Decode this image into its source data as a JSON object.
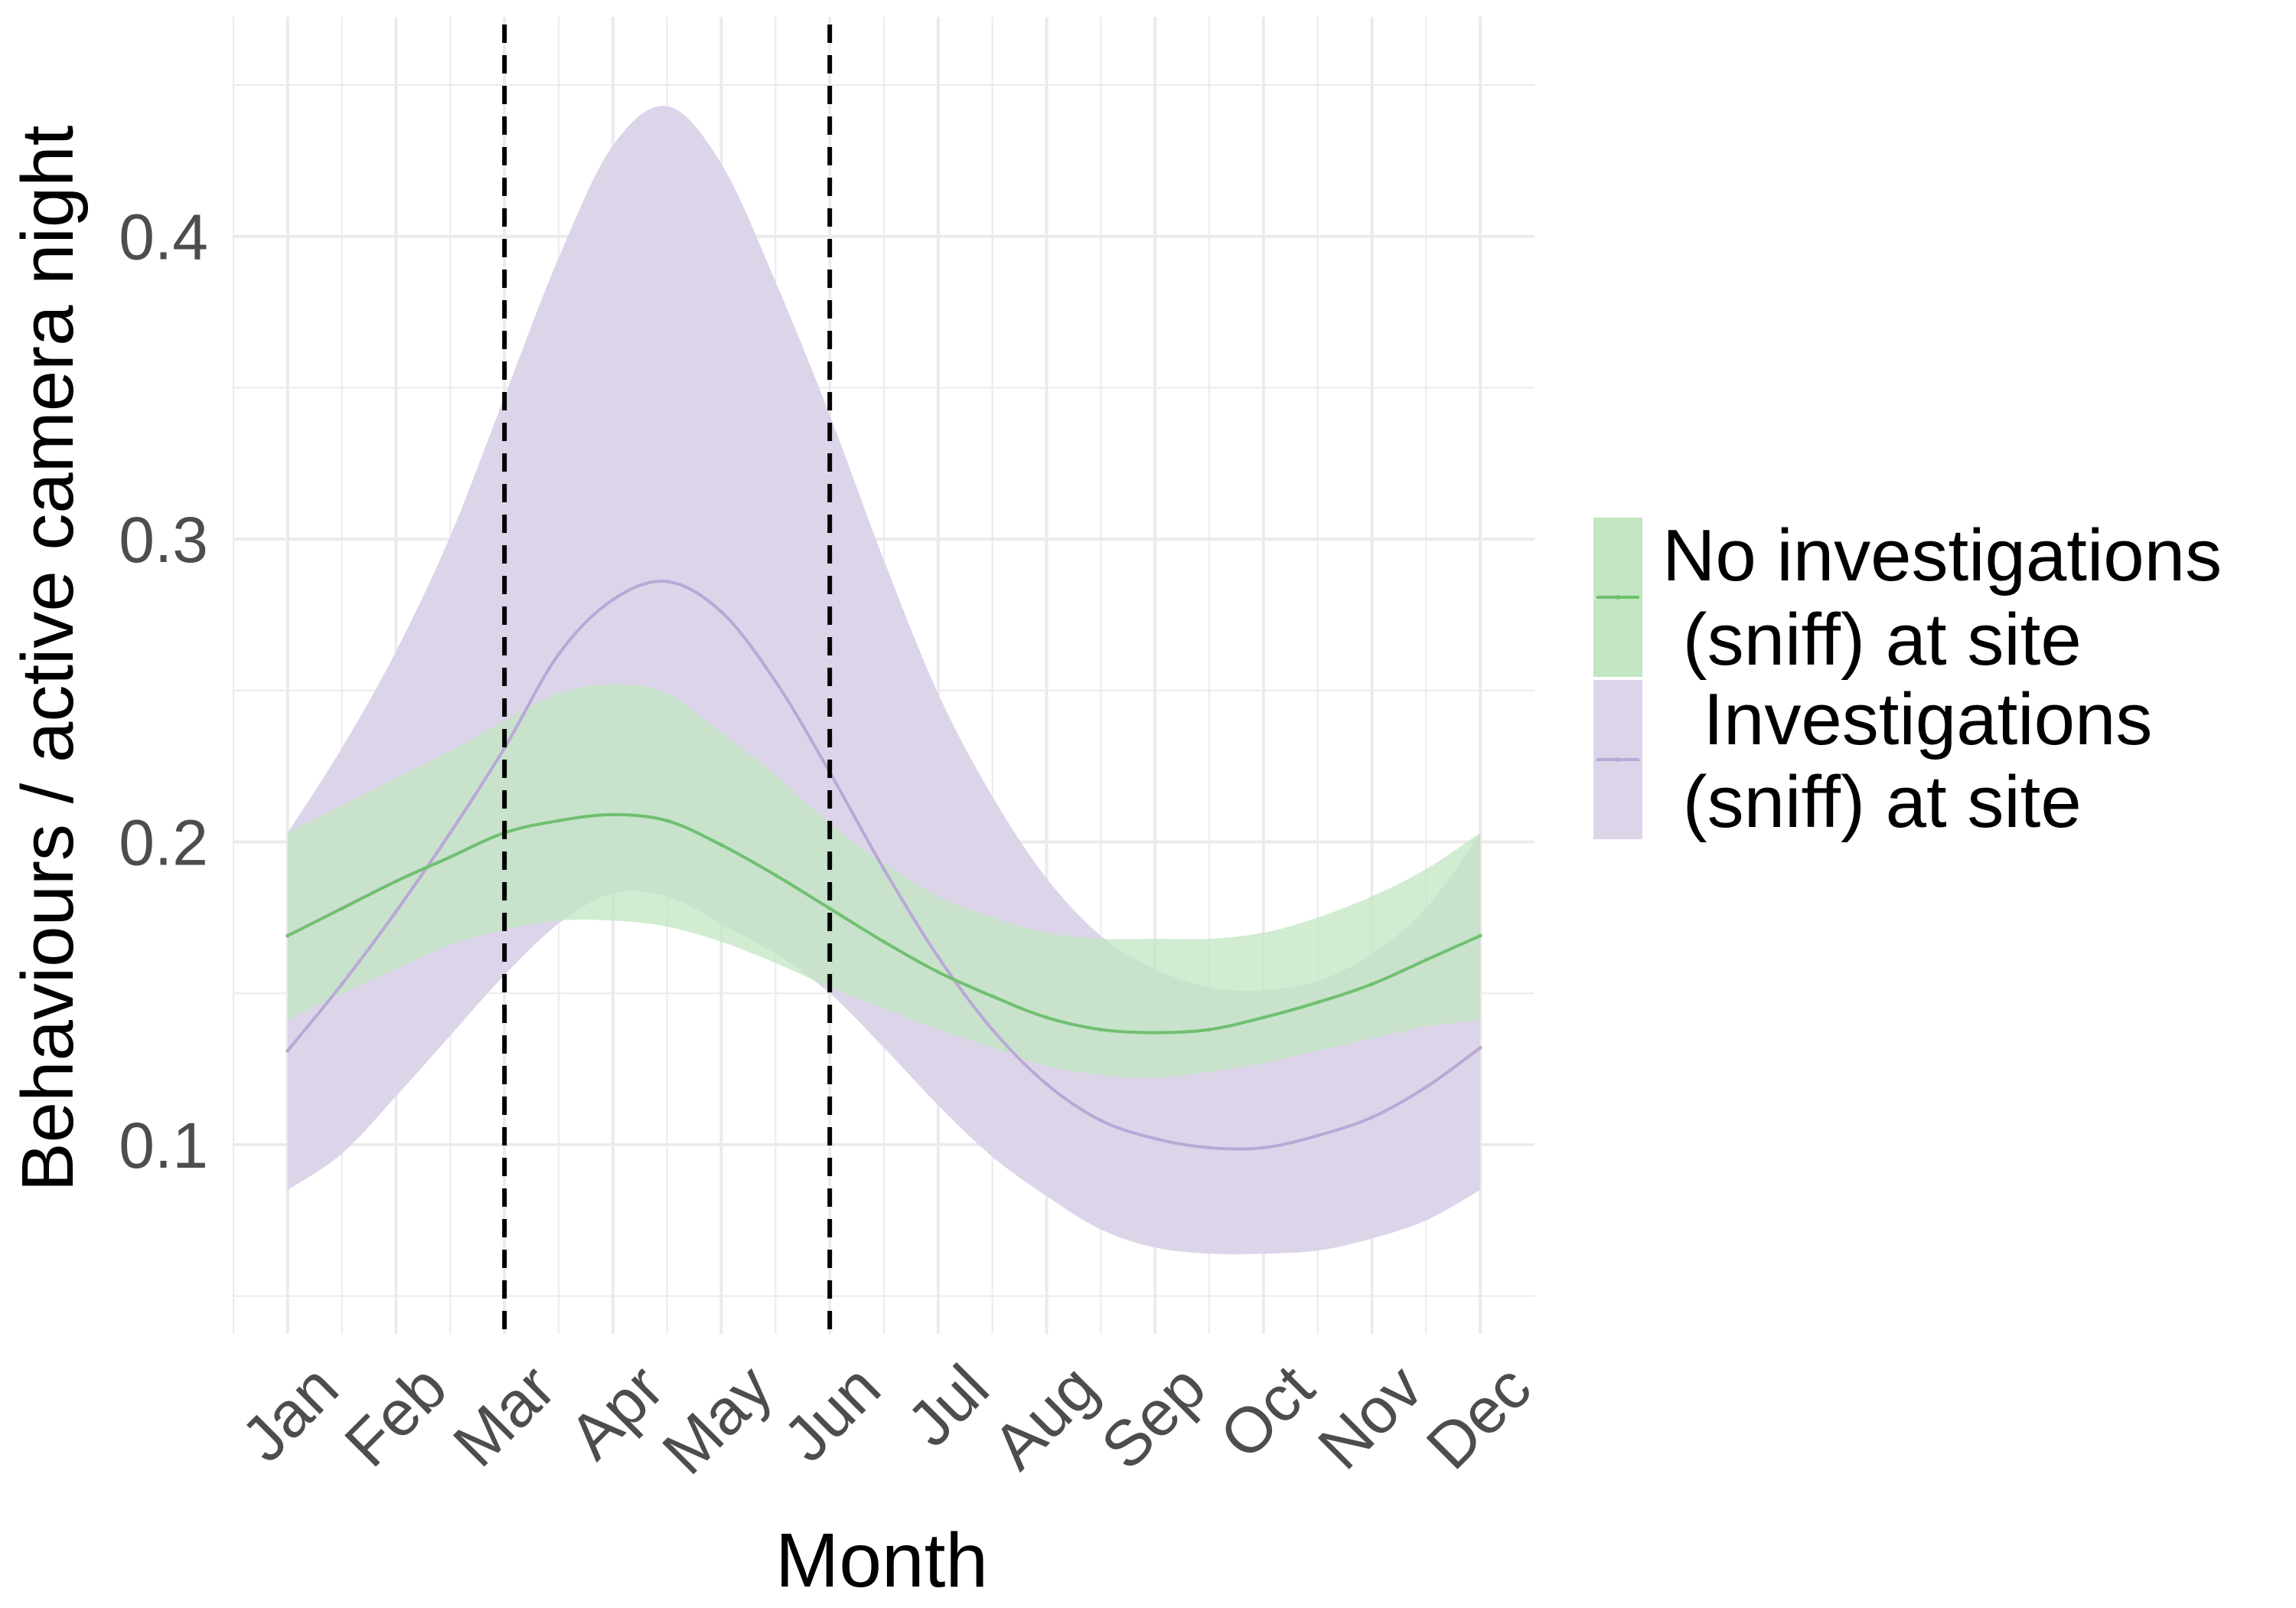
{
  "chart_data": {
    "type": "line",
    "title": "",
    "xlabel": "Month",
    "ylabel": "Behaviours / active camera night",
    "categories": [
      "Jan",
      "Feb",
      "Mar",
      "Apr",
      "May",
      "Jun",
      "Jul",
      "Aug",
      "Sep",
      "Oct",
      "Nov",
      "Dec"
    ],
    "x_range": [
      1,
      12
    ],
    "ylim": [
      0.05,
      0.45
    ],
    "yticks": [
      0.1,
      0.2,
      0.3,
      0.4
    ],
    "y_tick_labels": [
      "0.1",
      "0.2",
      "0.3",
      "0.4"
    ],
    "grid": true,
    "legend_position": "right",
    "reference_lines": [
      {
        "x": 3,
        "style": "dashed",
        "color": "#000000"
      },
      {
        "x": 6,
        "style": "dashed",
        "color": "#000000"
      }
    ],
    "series": [
      {
        "name": "No investigations (sniff) at site",
        "legend_lines": [
          "No investigations",
          " (sniff) at site"
        ],
        "line_color": "#6fc06f",
        "band_color": "#c2e6c2",
        "x": [
          1,
          1.5,
          2,
          2.5,
          3,
          3.5,
          4,
          4.5,
          5,
          5.5,
          6,
          6.5,
          7,
          7.5,
          8,
          8.5,
          9,
          9.5,
          10,
          10.5,
          11,
          11.5,
          12
        ],
        "values": [
          0.169,
          0.178,
          0.187,
          0.195,
          0.203,
          0.207,
          0.209,
          0.207,
          0.199,
          0.189,
          0.178,
          0.167,
          0.157,
          0.149,
          0.142,
          0.138,
          0.137,
          0.138,
          0.142,
          0.147,
          0.153,
          0.161,
          0.169
        ],
        "lower": [
          0.141,
          0.15,
          0.158,
          0.166,
          0.171,
          0.174,
          0.174,
          0.172,
          0.167,
          0.16,
          0.152,
          0.145,
          0.138,
          0.132,
          0.126,
          0.123,
          0.122,
          0.124,
          0.127,
          0.131,
          0.135,
          0.139,
          0.141
        ],
        "upper": [
          0.203,
          0.212,
          0.221,
          0.23,
          0.24,
          0.249,
          0.252,
          0.249,
          0.236,
          0.222,
          0.206,
          0.193,
          0.182,
          0.175,
          0.17,
          0.168,
          0.168,
          0.168,
          0.17,
          0.175,
          0.182,
          0.191,
          0.203
        ]
      },
      {
        "name": "Investigations (sniff) at site",
        "legend_lines": [
          "  Investigations",
          " (sniff) at site"
        ],
        "line_color": "#b9a8d6",
        "band_color": "#dcd5e9",
        "x": [
          1,
          1.5,
          2,
          2.5,
          3,
          3.5,
          4,
          4.5,
          5,
          5.5,
          6,
          6.5,
          7,
          7.5,
          8,
          8.5,
          9,
          9.5,
          10,
          10.5,
          11,
          11.5,
          12
        ],
        "values": [
          0.131,
          0.153,
          0.177,
          0.203,
          0.231,
          0.262,
          0.28,
          0.286,
          0.276,
          0.253,
          0.223,
          0.191,
          0.162,
          0.138,
          0.12,
          0.108,
          0.102,
          0.099,
          0.099,
          0.103,
          0.109,
          0.119,
          0.132
        ],
        "lower": [
          0.085,
          0.097,
          0.116,
          0.136,
          0.156,
          0.173,
          0.183,
          0.182,
          0.173,
          0.163,
          0.15,
          0.132,
          0.113,
          0.096,
          0.083,
          0.072,
          0.066,
          0.064,
          0.064,
          0.065,
          0.069,
          0.075,
          0.085
        ],
        "upper": [
          0.203,
          0.231,
          0.263,
          0.301,
          0.347,
          0.393,
          0.43,
          0.443,
          0.424,
          0.385,
          0.341,
          0.293,
          0.249,
          0.215,
          0.188,
          0.169,
          0.158,
          0.152,
          0.151,
          0.154,
          0.163,
          0.178,
          0.203
        ]
      }
    ]
  }
}
